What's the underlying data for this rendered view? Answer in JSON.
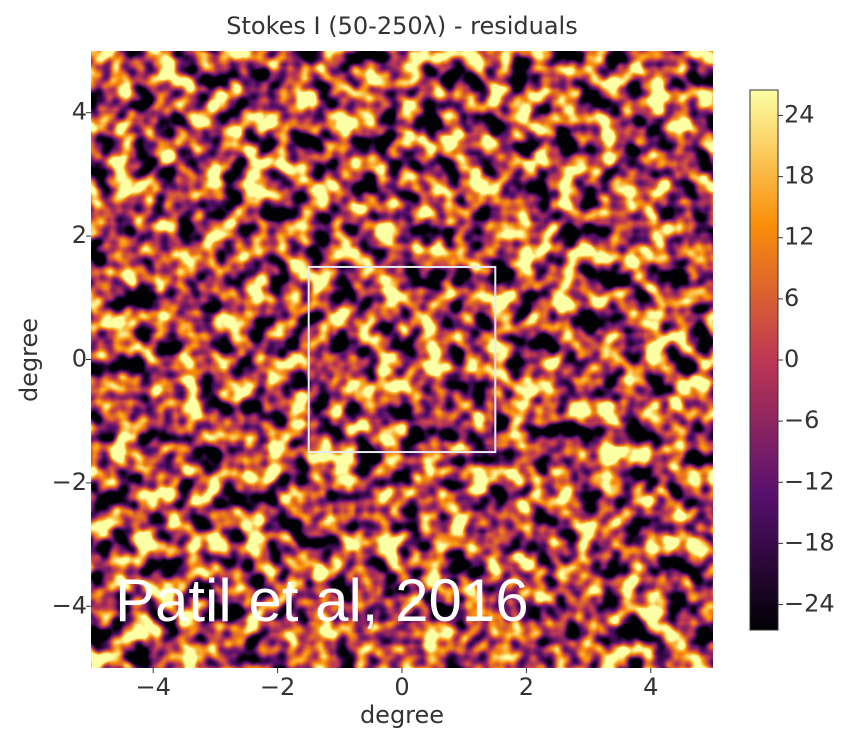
{
  "chart_data": {
    "type": "heatmap",
    "title": "Stokes I (50-250λ) - residuals",
    "x_label": "degree",
    "y_label": "degree",
    "xlim": [
      -5,
      5
    ],
    "ylim": [
      -5,
      5
    ],
    "xticks": [
      {
        "value": -4,
        "label": "−4"
      },
      {
        "value": -2,
        "label": "−2"
      },
      0,
      2,
      4
    ],
    "yticks": [
      {
        "value": -4,
        "label": "−4"
      },
      {
        "value": -2,
        "label": "−2"
      },
      0,
      2,
      4
    ],
    "colormap": "inferno",
    "clim": [
      -26.5,
      26.5
    ],
    "cticks": [
      {
        "value": -24,
        "label": "−24"
      },
      {
        "value": -18,
        "label": "−18"
      },
      {
        "value": -12,
        "label": "−12"
      },
      {
        "value": -6,
        "label": "−6"
      },
      0,
      6,
      12,
      18,
      24
    ],
    "region": {
      "xlim": [
        -1.5,
        1.5
      ],
      "ylim": [
        -1.5,
        1.5
      ],
      "color": "#e8e8f0"
    },
    "annotation": "Patil et al, 2016"
  }
}
